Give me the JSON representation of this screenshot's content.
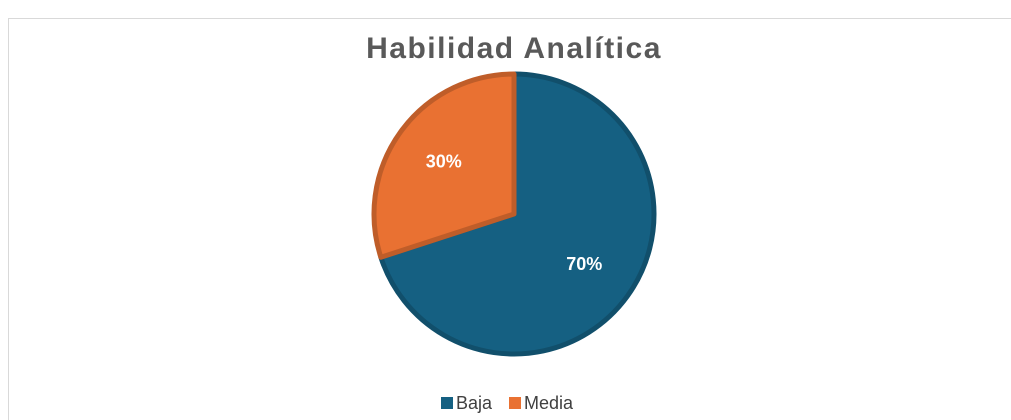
{
  "chart_data": {
    "type": "pie",
    "title": "Habilidad Analítica",
    "categories": [
      "Baja",
      "Media"
    ],
    "values": [
      70,
      30
    ],
    "value_labels": [
      "70%",
      "30%"
    ],
    "colors": [
      "#156082",
      "#e97132"
    ],
    "legend": "bottom"
  }
}
